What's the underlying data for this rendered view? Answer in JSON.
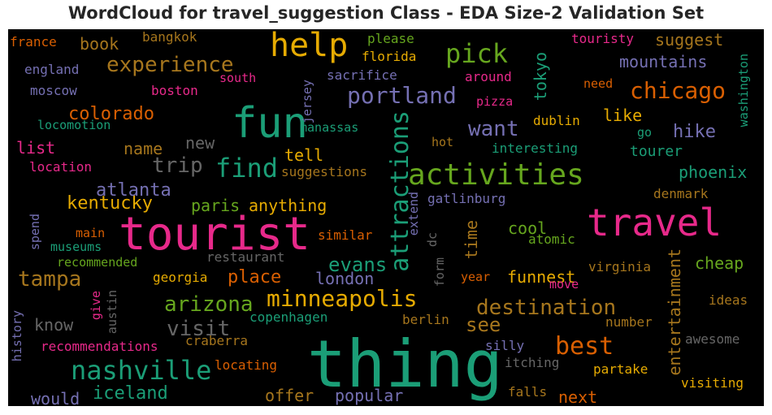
{
  "chart_data": {
    "type": "wordcloud",
    "title": "WordCloud for travel_suggestion Class - EDA Size-2 Validation Set",
    "background": "#000000",
    "colormap": "Dark2",
    "words": [
      {
        "text": "thing",
        "color": "#1b9e77"
      },
      {
        "text": "tourist",
        "color": "#e7298a"
      },
      {
        "text": "fun",
        "color": "#1b9e77"
      },
      {
        "text": "travel",
        "color": "#e7298a"
      },
      {
        "text": "help",
        "color": "#e6ab02"
      },
      {
        "text": "activities",
        "color": "#66a61e"
      },
      {
        "text": "attractions",
        "color": "#1b9e77"
      },
      {
        "text": "nashville",
        "color": "#1b9e77"
      },
      {
        "text": "pick",
        "color": "#66a61e"
      },
      {
        "text": "find",
        "color": "#1b9e77"
      },
      {
        "text": "best",
        "color": "#d95f02"
      },
      {
        "text": "experience",
        "color": "#a6761d"
      },
      {
        "text": "portland",
        "color": "#7570b3"
      },
      {
        "text": "chicago",
        "color": "#d95f02"
      },
      {
        "text": "minneapolis",
        "color": "#e6ab02"
      },
      {
        "text": "destination",
        "color": "#a6761d"
      },
      {
        "text": "arizona",
        "color": "#66a61e"
      },
      {
        "text": "visit",
        "color": "#666666"
      },
      {
        "text": "entertainment",
        "color": "#a6761d"
      },
      {
        "text": "want",
        "color": "#7570b3"
      },
      {
        "text": "trip",
        "color": "#666666"
      },
      {
        "text": "tampa",
        "color": "#a6761d"
      },
      {
        "text": "evans",
        "color": "#1b9e77"
      },
      {
        "text": "see",
        "color": "#a6761d"
      },
      {
        "text": "iceland",
        "color": "#1b9e77"
      },
      {
        "text": "tokyo",
        "color": "#1b9e77"
      },
      {
        "text": "place",
        "color": "#d95f02"
      },
      {
        "text": "kentucky",
        "color": "#e6ab02"
      },
      {
        "text": "atlanta",
        "color": "#7570b3"
      },
      {
        "text": "phoenix",
        "color": "#1b9e77"
      },
      {
        "text": "mountains",
        "color": "#7570b3"
      },
      {
        "text": "suggest",
        "color": "#a6761d"
      },
      {
        "text": "hike",
        "color": "#7570b3"
      },
      {
        "text": "cheap",
        "color": "#66a61e"
      },
      {
        "text": "colorado",
        "color": "#d95f02"
      },
      {
        "text": "anything",
        "color": "#e6ab02"
      },
      {
        "text": "paris",
        "color": "#66a61e"
      },
      {
        "text": "know",
        "color": "#666666"
      },
      {
        "text": "london",
        "color": "#7570b3"
      },
      {
        "text": "funnest",
        "color": "#e6ab02"
      },
      {
        "text": "offer",
        "color": "#a6761d"
      },
      {
        "text": "popular",
        "color": "#7570b3"
      },
      {
        "text": "next",
        "color": "#d95f02"
      },
      {
        "text": "would",
        "color": "#7570b3"
      },
      {
        "text": "time",
        "color": "#a6761d"
      },
      {
        "text": "cool",
        "color": "#66a61e"
      },
      {
        "text": "book",
        "color": "#a6761d"
      },
      {
        "text": "list",
        "color": "#e7298a"
      },
      {
        "text": "name",
        "color": "#a6761d"
      },
      {
        "text": "new",
        "color": "#666666"
      },
      {
        "text": "tell",
        "color": "#e6ab02"
      },
      {
        "text": "like",
        "color": "#e6ab02"
      },
      {
        "text": "tourer",
        "color": "#1b9e77"
      },
      {
        "text": "visiting",
        "color": "#e6ab02"
      },
      {
        "text": "touristy",
        "color": "#e7298a"
      },
      {
        "text": "france",
        "color": "#d95f02"
      },
      {
        "text": "bangkok",
        "color": "#a6761d"
      },
      {
        "text": "england",
        "color": "#7570b3"
      },
      {
        "text": "moscow",
        "color": "#7570b3"
      },
      {
        "text": "boston",
        "color": "#e7298a"
      },
      {
        "text": "south",
        "color": "#e7298a"
      },
      {
        "text": "please",
        "color": "#66a61e"
      },
      {
        "text": "florida",
        "color": "#e6ab02"
      },
      {
        "text": "jersey",
        "color": "#7570b3"
      },
      {
        "text": "sacrifice",
        "color": "#7570b3"
      },
      {
        "text": "around",
        "color": "#e7298a"
      },
      {
        "text": "need",
        "color": "#d95f02"
      },
      {
        "text": "washington",
        "color": "#1b9e77"
      },
      {
        "text": "pizza",
        "color": "#e7298a"
      },
      {
        "text": "dublin",
        "color": "#e6ab02"
      },
      {
        "text": "go",
        "color": "#1b9e77"
      },
      {
        "text": "locomotion",
        "color": "#1b9e77"
      },
      {
        "text": "manassas",
        "color": "#1b9e77"
      },
      {
        "text": "hot",
        "color": "#a6761d"
      },
      {
        "text": "interesting",
        "color": "#1b9e77"
      },
      {
        "text": "location",
        "color": "#e7298a"
      },
      {
        "text": "suggestions",
        "color": "#a6761d"
      },
      {
        "text": "extend",
        "color": "#7570b3"
      },
      {
        "text": "gatlinburg",
        "color": "#7570b3"
      },
      {
        "text": "denmark",
        "color": "#a6761d"
      },
      {
        "text": "spend",
        "color": "#7570b3"
      },
      {
        "text": "main",
        "color": "#d95f02"
      },
      {
        "text": "museums",
        "color": "#1b9e77"
      },
      {
        "text": "recommended",
        "color": "#66a61e"
      },
      {
        "text": "restaurant",
        "color": "#666666"
      },
      {
        "text": "similar",
        "color": "#d95f02"
      },
      {
        "text": "dc",
        "color": "#666666"
      },
      {
        "text": "atomic",
        "color": "#66a61e"
      },
      {
        "text": "form",
        "color": "#666666"
      },
      {
        "text": "virginia",
        "color": "#a6761d"
      },
      {
        "text": "georgia",
        "color": "#e6ab02"
      },
      {
        "text": "give",
        "color": "#e7298a"
      },
      {
        "text": "austin",
        "color": "#666666"
      },
      {
        "text": "year",
        "color": "#d95f02"
      },
      {
        "text": "move",
        "color": "#e7298a"
      },
      {
        "text": "ideas",
        "color": "#a6761d"
      },
      {
        "text": "history",
        "color": "#7570b3"
      },
      {
        "text": "copenhagen",
        "color": "#1b9e77"
      },
      {
        "text": "berlin",
        "color": "#a6761d"
      },
      {
        "text": "number",
        "color": "#a6761d"
      },
      {
        "text": "recommendations",
        "color": "#e7298a"
      },
      {
        "text": "craberra",
        "color": "#a6761d"
      },
      {
        "text": "silly",
        "color": "#7570b3"
      },
      {
        "text": "awesome",
        "color": "#666666"
      },
      {
        "text": "locating",
        "color": "#d95f02"
      },
      {
        "text": "itching",
        "color": "#666666"
      },
      {
        "text": "partake",
        "color": "#e6ab02"
      },
      {
        "text": "falls",
        "color": "#a6761d"
      }
    ]
  }
}
